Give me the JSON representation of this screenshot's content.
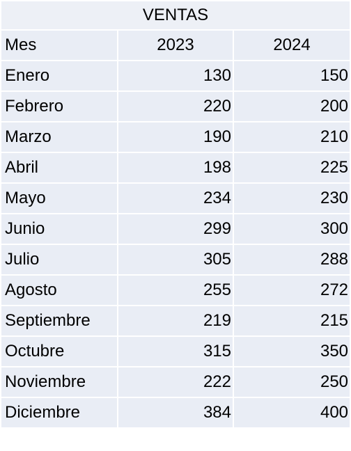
{
  "table": {
    "title": "VENTAS",
    "headers": [
      "Mes",
      "2023",
      "2024"
    ],
    "rows": [
      {
        "mes": "Enero",
        "y2023": "130",
        "y2024": "150"
      },
      {
        "mes": "Febrero",
        "y2023": "220",
        "y2024": "200"
      },
      {
        "mes": "Marzo",
        "y2023": "190",
        "y2024": "210"
      },
      {
        "mes": "Abril",
        "y2023": "198",
        "y2024": "225"
      },
      {
        "mes": "Mayo",
        "y2023": "234",
        "y2024": "230"
      },
      {
        "mes": "Junio",
        "y2023": "299",
        "y2024": "300"
      },
      {
        "mes": "Julio",
        "y2023": "305",
        "y2024": "288"
      },
      {
        "mes": "Agosto",
        "y2023": "255",
        "y2024": "272"
      },
      {
        "mes": "Septiembre",
        "y2023": "219",
        "y2024": "215"
      },
      {
        "mes": "Octubre",
        "y2023": "315",
        "y2024": "350"
      },
      {
        "mes": "Noviembre",
        "y2023": "222",
        "y2024": "250"
      },
      {
        "mes": "Diciembre",
        "y2023": "384",
        "y2024": "400"
      }
    ]
  },
  "colors": {
    "cell_background": "#e9edf5",
    "grid_lines": "#ffffff",
    "text": "#000000"
  }
}
